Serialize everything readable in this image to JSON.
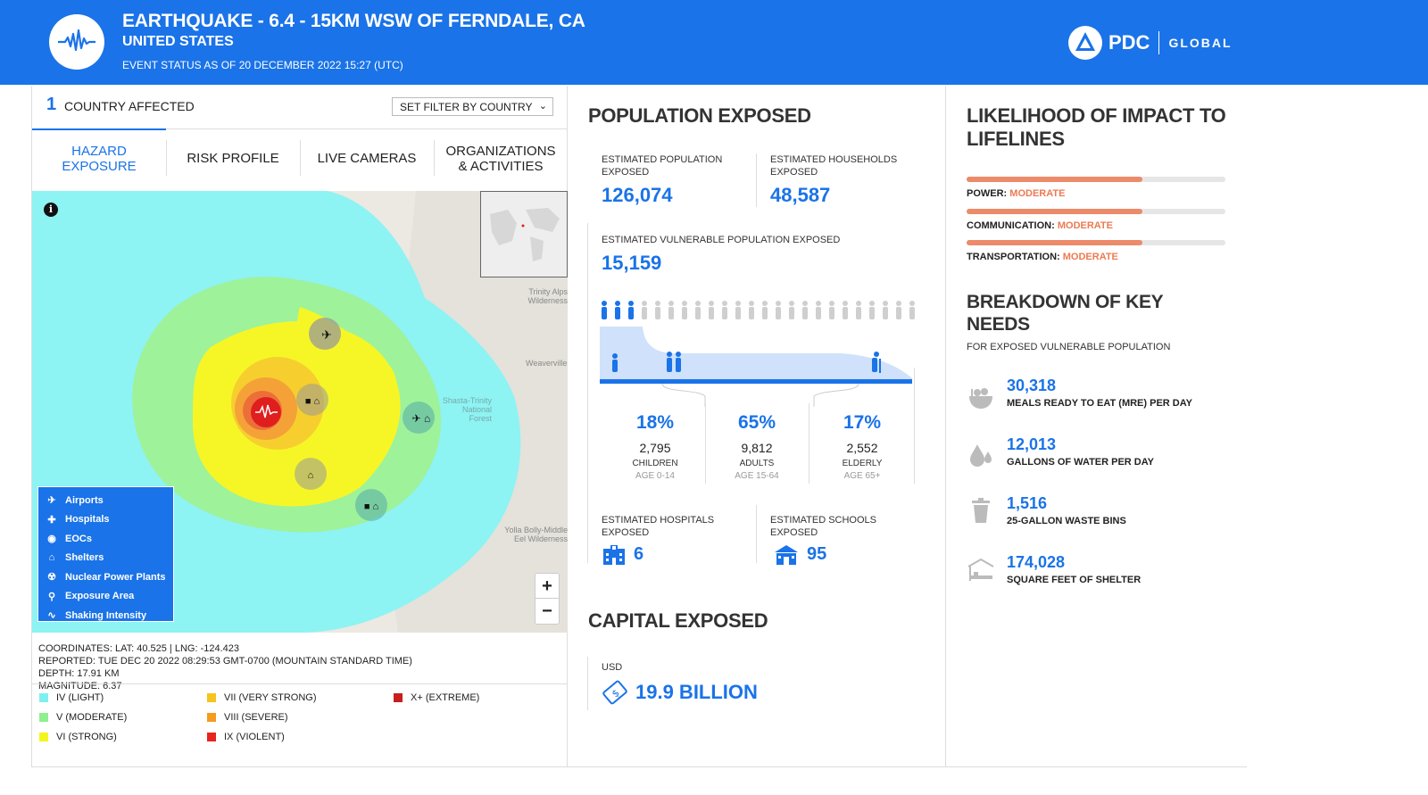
{
  "header": {
    "title": "EARTHQUAKE - 6.4 - 15KM WSW OF FERNDALE, CA",
    "subtitle": "UNITED STATES",
    "status": "EVENT STATUS AS OF 20 DECEMBER 2022 15:27 (UTC)",
    "brand": "PDC",
    "brand_suffix": "GLOBAL"
  },
  "left": {
    "country_count": "1",
    "country_label": "COUNTRY AFFECTED",
    "filter_label": "SET FILTER BY COUNTRY",
    "tabs": [
      {
        "label": "HAZARD EXPOSURE"
      },
      {
        "label": "RISK PROFILE"
      },
      {
        "label": "LIVE CAMERAS"
      },
      {
        "label": "ORGANIZATIONS & ACTIVITIES"
      }
    ],
    "map_labels": [
      "Trinity Alps Wilderness",
      "Weaverville",
      "Shasta-Trinity National Forest",
      "Yolla Bolly-Middle Eel Wilderness"
    ],
    "legend": [
      {
        "label": "Airports",
        "icon": "airplane-icon"
      },
      {
        "label": "Hospitals",
        "icon": "hospital-icon"
      },
      {
        "label": "EOCs",
        "icon": "eoc-icon"
      },
      {
        "label": "Shelters",
        "icon": "shelter-icon"
      },
      {
        "label": "Nuclear Power Plants",
        "icon": "nuclear-icon"
      },
      {
        "label": "Exposure Area",
        "icon": "exposure-icon"
      },
      {
        "label": "Shaking Intensity",
        "icon": "shaking-icon"
      }
    ],
    "zoom_in": "+",
    "zoom_out": "−",
    "coords": [
      "COORDINATES: LAT: 40.525 | LNG: -124.423",
      "REPORTED: TUE DEC 20 2022 08:29:53 GMT-0700 (MOUNTAIN STANDARD TIME)",
      "DEPTH: 17.91 KM",
      "MAGNITUDE: 6.37"
    ],
    "mmi": [
      {
        "label": "IV (LIGHT)",
        "color": "#7ef0f0"
      },
      {
        "label": "V (MODERATE)",
        "color": "#8ef08e"
      },
      {
        "label": "VI (STRONG)",
        "color": "#f5f51e"
      },
      {
        "label": "VII (VERY STRONG)",
        "color": "#f5c41e"
      },
      {
        "label": "VIII (SEVERE)",
        "color": "#f59b1e"
      },
      {
        "label": "IX (VIOLENT)",
        "color": "#e8241e"
      },
      {
        "label": "X+ (EXTREME)",
        "color": "#c81e1e"
      }
    ]
  },
  "population": {
    "title": "POPULATION EXPOSED",
    "est_pop_label": "ESTIMATED POPULATION EXPOSED",
    "est_pop": "126,074",
    "est_hh_label": "ESTIMATED HOUSEHOLDS EXPOSED",
    "est_hh": "48,587",
    "vuln_label": "ESTIMATED VULNERABLE POPULATION EXPOSED",
    "vuln": "15,159",
    "groups": [
      {
        "pct": "18%",
        "count": "2,795",
        "label": "CHILDREN",
        "age": "AGE 0-14"
      },
      {
        "pct": "65%",
        "count": "9,812",
        "label": "ADULTS",
        "age": "AGE 15-64"
      },
      {
        "pct": "17%",
        "count": "2,552",
        "label": "ELDERLY",
        "age": "AGE 65+"
      }
    ],
    "hosp_label": "ESTIMATED HOSPITALS EXPOSED",
    "hosp": "6",
    "schools_label": "ESTIMATED SCHOOLS EXPOSED",
    "schools": "95"
  },
  "capital": {
    "title": "CAPITAL EXPOSED",
    "currency": "USD",
    "value": "19.9 BILLION"
  },
  "lifelines": {
    "title": "LIKELIHOOD OF IMPACT TO LIFELINES",
    "items": [
      {
        "label": "POWER:",
        "level": "MODERATE",
        "fill": 0.68
      },
      {
        "label": "COMMUNICATION:",
        "level": "MODERATE",
        "fill": 0.68
      },
      {
        "label": "TRANSPORTATION:",
        "level": "MODERATE",
        "fill": 0.68
      }
    ]
  },
  "needs": {
    "title": "BREAKDOWN OF KEY NEEDS",
    "subtitle": "FOR EXPOSED VULNERABLE POPULATION",
    "items": [
      {
        "value": "30,318",
        "label": "MEALS READY TO EAT (MRE) PER DAY",
        "icon": "meal-icon"
      },
      {
        "value": "12,013",
        "label": "GALLONS OF WATER PER DAY",
        "icon": "water-drops-icon"
      },
      {
        "value": "1,516",
        "label": "25-GALLON WASTE BINS",
        "icon": "trash-bin-icon"
      },
      {
        "value": "174,028",
        "label": "SQUARE FEET OF SHELTER",
        "icon": "shelter-bed-icon"
      }
    ]
  }
}
